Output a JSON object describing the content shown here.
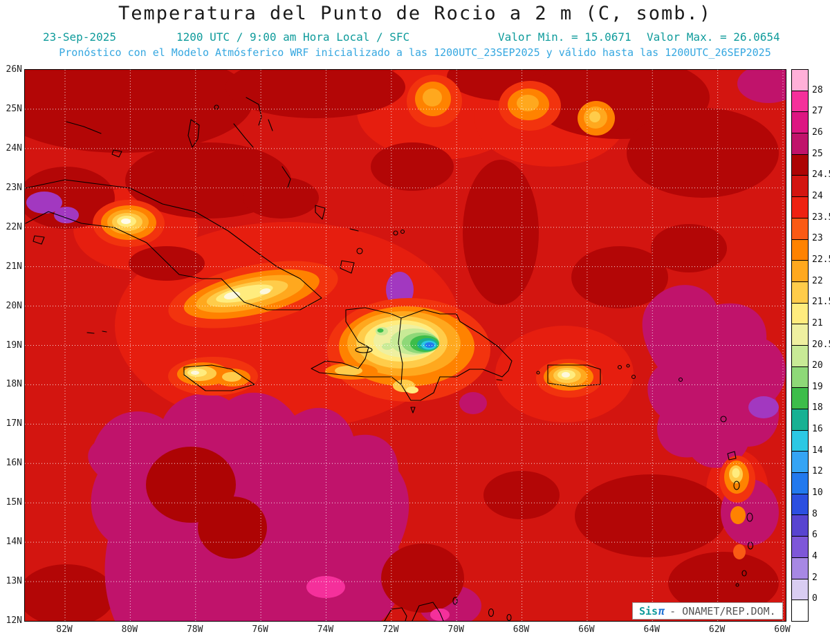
{
  "title": "Temperatura del Punto de Rocio a 2 m (C, somb.)",
  "header": {
    "date": "23-Sep-2025",
    "run_info": "1200 UTC / 9:00 am Hora Local / SFC",
    "valor_min": "Valor Min. = 15.0671",
    "valor_max": "Valor Max. = 26.0654",
    "forecast_note": "Pronóstico con el Modelo Atmósferico WRF inicializado a las 1200UTC_23SEP2025 y válido hasta las  1200UTC_26SEP2025"
  },
  "map": {
    "lat_labels": [
      "26N",
      "25N",
      "24N",
      "23N",
      "22N",
      "21N",
      "20N",
      "19N",
      "18N",
      "17N",
      "16N",
      "15N",
      "14N",
      "13N",
      "12N"
    ],
    "lon_labels": [
      "82W",
      "80W",
      "78W",
      "76W",
      "74W",
      "72W",
      "70W",
      "68W",
      "66W",
      "64W",
      "62W",
      "60W"
    ]
  },
  "colorbar": {
    "labels": [
      "28",
      "27",
      "26",
      "25",
      "24.5",
      "24",
      "23.5",
      "23",
      "22.5",
      "22",
      "21.5",
      "21",
      "20.5",
      "20",
      "19",
      "18",
      "16",
      "14",
      "12",
      "10",
      "8",
      "6",
      "4",
      "2",
      "0"
    ],
    "colors": [
      "#ffb0d8",
      "#f5309b",
      "#dd1682",
      "#c0136b",
      "#ad0404",
      "#d31510",
      "#ee2211",
      "#fa5a14",
      "#ff8200",
      "#ffa81e",
      "#ffcc4a",
      "#ffec7e",
      "#eff0a0",
      "#c8ea96",
      "#8ed878",
      "#3dbd4a",
      "#17b193",
      "#2cc8e4",
      "#35a4f4",
      "#2279ee",
      "#2c4fe0",
      "#5844d0",
      "#7e57d8",
      "#a788e4",
      "#d9cdf2",
      "#ffffff"
    ]
  },
  "branding": {
    "logo_sis": "Sis",
    "logo_pi": "π",
    "suffix": "- ONAMET/REP.DOM."
  },
  "colors": {
    "header_teal": "#0e9b9b",
    "header_blue": "#35a7e0",
    "map_base_red": "#d31510"
  }
}
